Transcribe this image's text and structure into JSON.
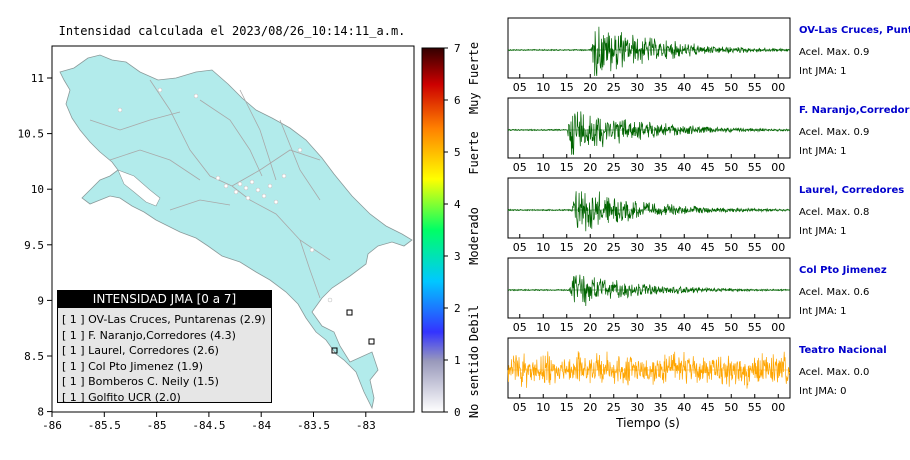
{
  "header": {
    "title": "Intensidad calculada el 2023/08/26_10:14:11_a.m."
  },
  "map": {
    "x_ticks": [
      "-86",
      "-85.5",
      "-85",
      "-84.5",
      "-84",
      "-83.5",
      "-83"
    ],
    "y_ticks": [
      "11",
      "10.5",
      "10",
      "9.5",
      "9",
      "8.5",
      "8"
    ],
    "land_color": "#b2ebeb"
  },
  "colorbar": {
    "ticks": [
      "0",
      "1",
      "2",
      "3",
      "4",
      "5",
      "6",
      "7"
    ],
    "levels": [
      "No sentido",
      "Debil",
      "Moderado",
      "Fuerte",
      "Muy Fuerte"
    ]
  },
  "legend": {
    "title": "INTENSIDAD JMA [0 a 7]",
    "rows": [
      "[ 1 ]  OV-Las Cruces, Puntarenas (2.9)",
      "[ 1 ]  F. Naranjo,Corredores (4.3)",
      "[ 1 ]  Laurel, Corredores (2.6)",
      "[ 1 ]  Col Pto Jimenez (1.9)",
      "[ 1 ]  Bomberos C. Neily (1.5)",
      "[ 1 ]  Golfito UCR (2.0)"
    ]
  },
  "chart_data": [
    {
      "type": "map",
      "title": "Intensidad calculada el 2023/08/26_10:14:11_a.m.",
      "xlim": [
        -86,
        -82.5
      ],
      "ylim": [
        8,
        11.3
      ],
      "colorbar_range": [
        0,
        7
      ],
      "stations": [
        {
          "name": "OV-Las Cruces, Puntarenas",
          "jma": 1,
          "value": 2.9
        },
        {
          "name": "F. Naranjo,Corredores",
          "jma": 1,
          "value": 4.3
        },
        {
          "name": "Laurel, Corredores",
          "jma": 1,
          "value": 2.6
        },
        {
          "name": "Col Pto Jimenez",
          "jma": 1,
          "value": 1.9
        },
        {
          "name": "Bomberos C. Neily",
          "jma": 1,
          "value": 1.5
        },
        {
          "name": "Golfito UCR",
          "jma": 1,
          "value": 2.0
        }
      ]
    },
    {
      "type": "line",
      "xlabel": "Tiempo (s)",
      "x_tick_labels": [
        "05",
        "10",
        "15",
        "20",
        "25",
        "30",
        "35",
        "40",
        "45",
        "50",
        "55",
        "00"
      ],
      "series": [
        {
          "name": "OV-Las Cruces, Puntar",
          "acel_label": "Acel. Max. 0.9",
          "jma_label": "Int JMA: 1",
          "color": "#006400",
          "onset": 17.5,
          "peak": 0.9
        },
        {
          "name": "F. Naranjo,Corredores",
          "acel_label": "Acel. Max. 0.9",
          "jma_label": "Int JMA: 1",
          "color": "#006400",
          "onset": 12.5,
          "peak": 0.9
        },
        {
          "name": "Laurel, Corredores",
          "acel_label": "Acel. Max. 0.8",
          "jma_label": "Int JMA: 1",
          "color": "#006400",
          "onset": 13.5,
          "peak": 0.8
        },
        {
          "name": "Col Pto Jimenez",
          "acel_label": "Acel. Max. 0.6",
          "jma_label": "Int JMA: 1",
          "color": "#006400",
          "onset": 13.0,
          "peak": 0.6
        },
        {
          "name": "Teatro Nacional",
          "acel_label": "Acel. Max. 0.0",
          "jma_label": "Int JMA: 0",
          "color": "#ffa500",
          "onset": 0,
          "peak": 0.0
        }
      ]
    }
  ]
}
